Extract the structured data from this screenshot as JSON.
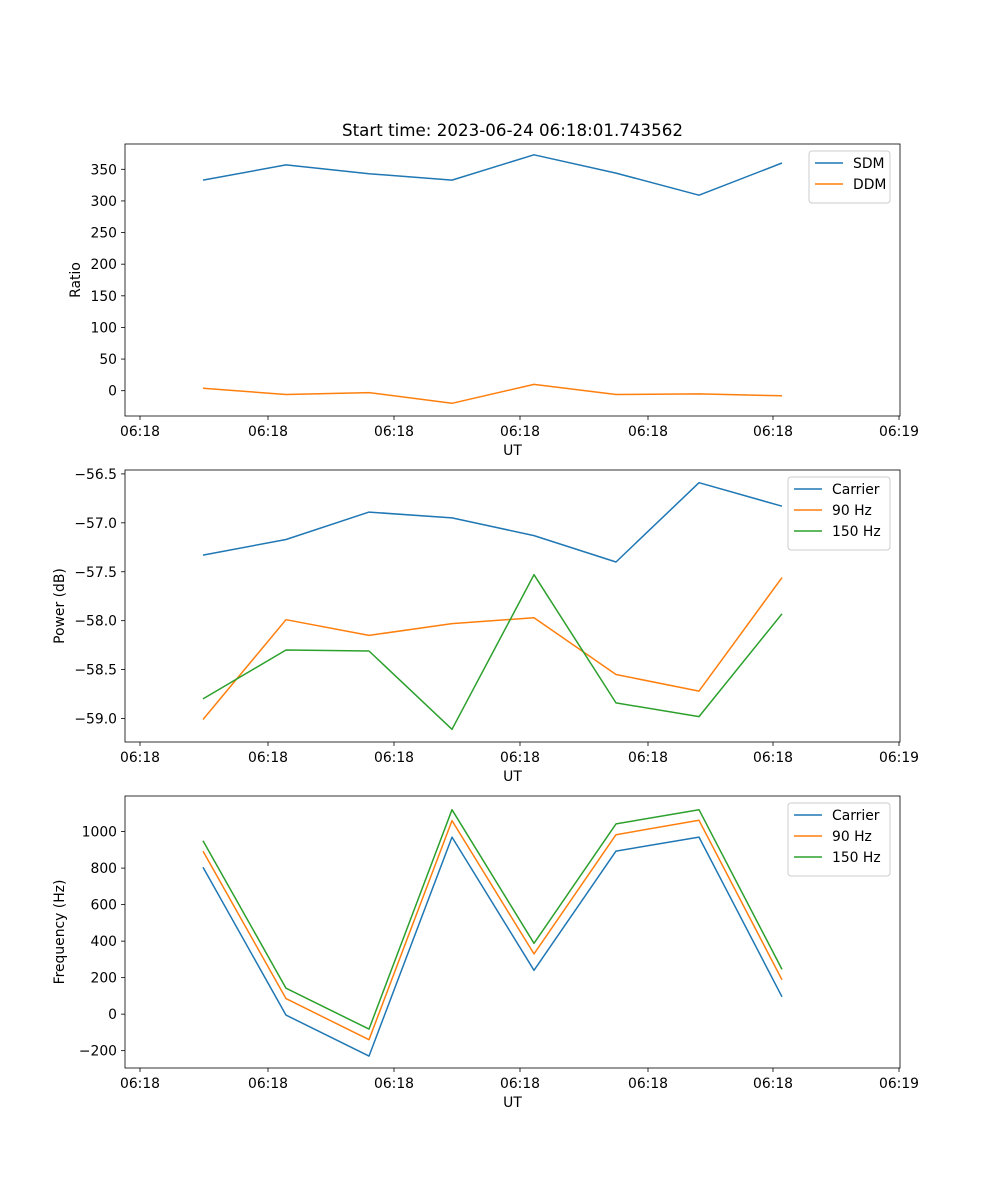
{
  "figure_title": "Start time: 2023-06-24 06:18:01.743562",
  "chart_data": [
    {
      "type": "line",
      "xlabel": "UT",
      "ylabel": "Ratio",
      "x_ticks": [
        "06:18",
        "06:18",
        "06:18",
        "06:18",
        "06:18",
        "06:18",
        "06:19"
      ],
      "ylim": [
        -40,
        390
      ],
      "y_ticks": [
        0,
        50,
        100,
        150,
        200,
        250,
        300,
        350
      ],
      "legend_position": "top-right",
      "series": [
        {
          "name": "SDM",
          "color": "#1f77b4",
          "values": [
            333,
            357,
            343,
            333,
            373,
            344,
            309,
            360
          ]
        },
        {
          "name": "DDM",
          "color": "#ff7f0e",
          "values": [
            4,
            -6,
            -3,
            -20,
            10,
            -6,
            -5,
            -8
          ]
        }
      ]
    },
    {
      "type": "line",
      "xlabel": "UT",
      "ylabel": "Power (dB)",
      "x_ticks": [
        "06:18",
        "06:18",
        "06:18",
        "06:18",
        "06:18",
        "06:18",
        "06:19"
      ],
      "ylim": [
        -59.24,
        -56.46
      ],
      "y_ticks": [
        -59.0,
        -58.5,
        -58.0,
        -57.5,
        -57.0,
        -56.5
      ],
      "y_tick_labels": [
        "−59.0",
        "−58.5",
        "−58.0",
        "−57.5",
        "−57.0",
        "−56.5"
      ],
      "legend_position": "top-right",
      "series": [
        {
          "name": "Carrier",
          "color": "#1f77b4",
          "values": [
            -57.33,
            -57.17,
            -56.89,
            -56.95,
            -57.13,
            -57.4,
            -56.59,
            -56.83
          ]
        },
        {
          "name": "90 Hz",
          "color": "#ff7f0e",
          "values": [
            -59.01,
            -57.99,
            -58.15,
            -58.03,
            -57.97,
            -58.55,
            -58.72,
            -57.56
          ]
        },
        {
          "name": "150 Hz",
          "color": "#2ca02c",
          "values": [
            -58.8,
            -58.3,
            -58.31,
            -59.11,
            -57.53,
            -58.84,
            -58.98,
            -57.93
          ]
        }
      ]
    },
    {
      "type": "line",
      "xlabel": "UT",
      "ylabel": "Frequency (Hz)",
      "x_ticks": [
        "06:18",
        "06:18",
        "06:18",
        "06:18",
        "06:18",
        "06:18",
        "06:19"
      ],
      "ylim": [
        -295,
        1195
      ],
      "y_ticks": [
        -200,
        0,
        200,
        400,
        600,
        800,
        1000
      ],
      "y_tick_labels": [
        "−200",
        "0",
        "200",
        "400",
        "600",
        "800",
        "1000"
      ],
      "legend_position": "top-right",
      "series": [
        {
          "name": "Carrier",
          "color": "#1f77b4",
          "values": [
            805,
            -5,
            -230,
            970,
            240,
            893,
            970,
            95
          ]
        },
        {
          "name": "90 Hz",
          "color": "#ff7f0e",
          "values": [
            893,
            85,
            -140,
            1060,
            330,
            983,
            1062,
            188
          ]
        },
        {
          "name": "150 Hz",
          "color": "#2ca02c",
          "values": [
            950,
            142,
            -82,
            1120,
            388,
            1042,
            1120,
            245
          ]
        }
      ]
    }
  ]
}
